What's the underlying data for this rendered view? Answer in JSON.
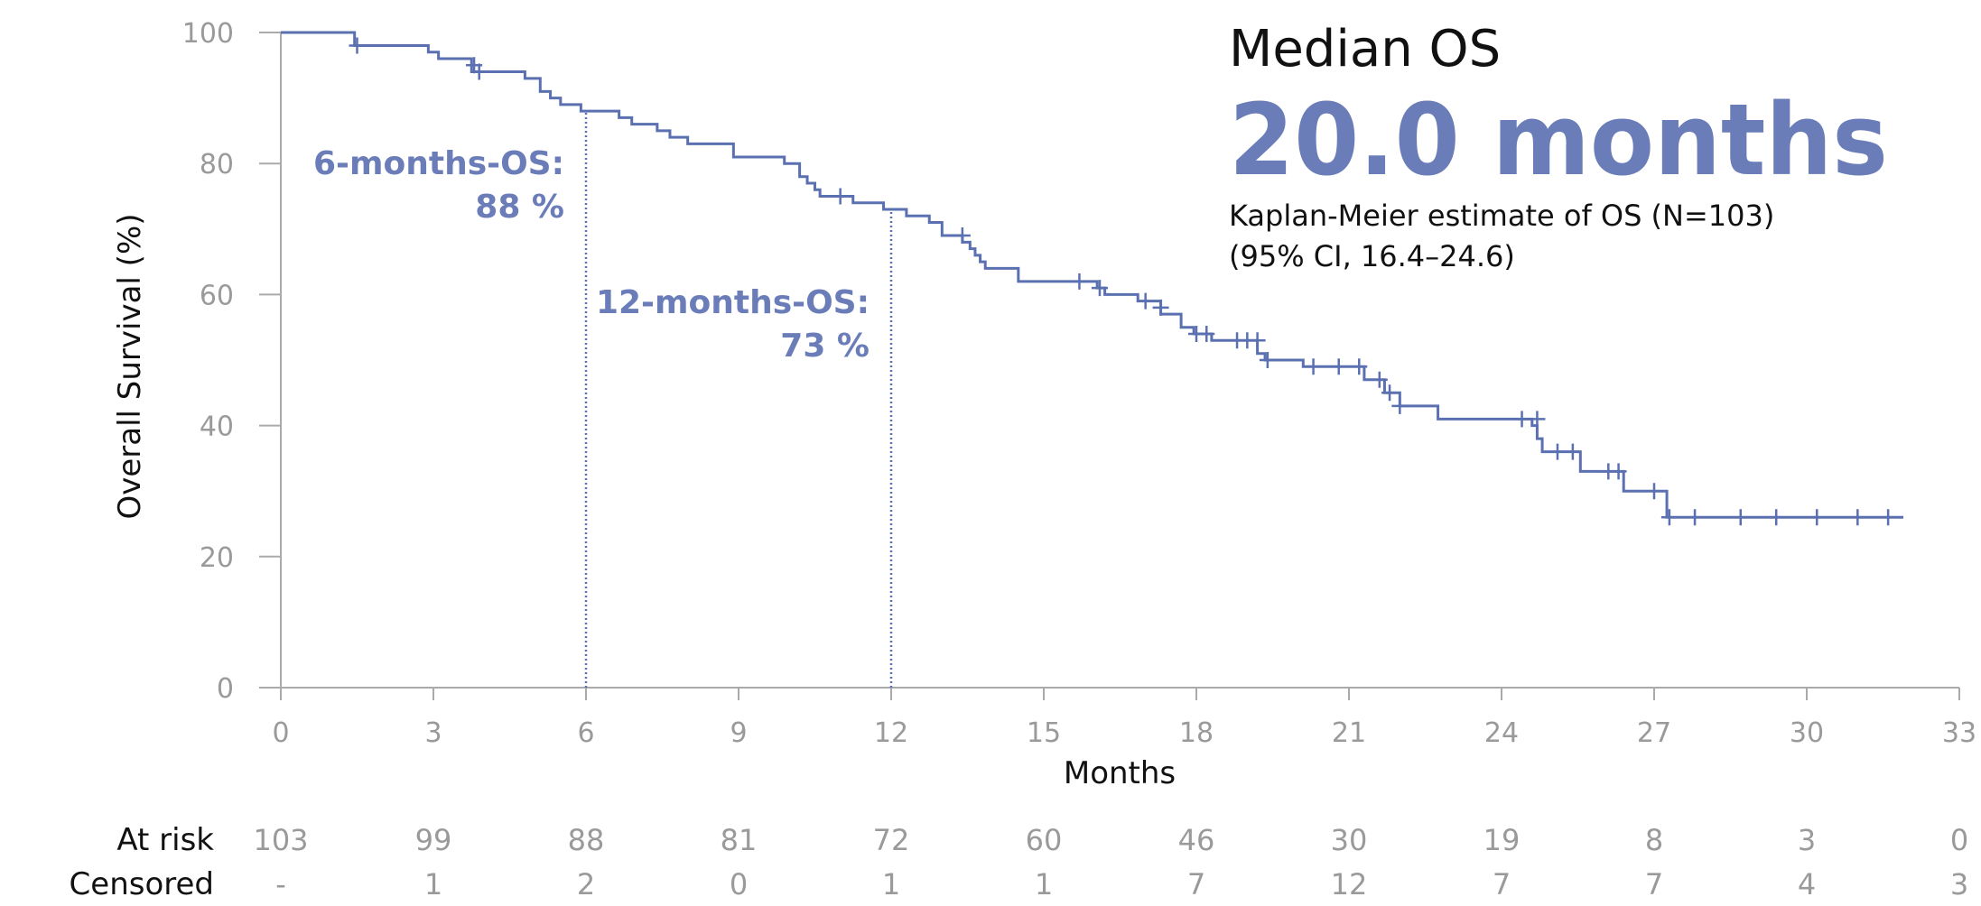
{
  "chart_data": {
    "type": "kaplan-meier",
    "ylabel": "Overall Survival (%)",
    "xlabel": "Months",
    "color": "#5a70b1",
    "xlim": [
      0,
      33
    ],
    "xticks": [
      0,
      3,
      6,
      9,
      12,
      15,
      18,
      21,
      24,
      27,
      30,
      33
    ],
    "ylim": [
      0,
      100
    ],
    "yticks": [
      0,
      20,
      40,
      60,
      80,
      100
    ],
    "x": [
      0,
      1.45,
      2.9,
      3.1,
      3.75,
      4.8,
      5.1,
      5.3,
      5.5,
      5.9,
      6.65,
      6.9,
      7.4,
      7.65,
      8.0,
      8.9,
      9.9,
      10.2,
      10.35,
      10.5,
      10.6,
      11.25,
      11.85,
      12.3,
      12.75,
      13.0,
      13.4,
      13.55,
      13.65,
      13.75,
      13.85,
      14.5,
      16.05,
      16.2,
      16.85,
      17.3,
      17.7,
      17.95,
      18.3,
      19.2,
      19.35,
      20.1,
      21.3,
      21.7,
      22.0,
      22.75,
      24.6,
      24.7,
      24.8,
      25.55,
      26.4,
      27.25,
      31.9
    ],
    "values": [
      100,
      98,
      97,
      96,
      94,
      93,
      91,
      90,
      89,
      88,
      87,
      86,
      85,
      84,
      83,
      81,
      80,
      78,
      77,
      76,
      75,
      74,
      73,
      72,
      71,
      69,
      68,
      67,
      66,
      65,
      64,
      62,
      61,
      60,
      59,
      57,
      55,
      54,
      53,
      51,
      50,
      49,
      47,
      45,
      43,
      41,
      40,
      38,
      36,
      33,
      30,
      26,
      26
    ],
    "censored_x": [
      1.5,
      3.8,
      3.9,
      11.0,
      13.4,
      15.7,
      16.1,
      17.0,
      17.3,
      18.0,
      18.2,
      18.8,
      19.0,
      19.2,
      19.4,
      20.3,
      20.8,
      21.2,
      21.6,
      21.8,
      22.0,
      24.4,
      24.7,
      25.1,
      25.4,
      26.1,
      26.3,
      27.0,
      27.3,
      27.8,
      28.7,
      29.4,
      30.2,
      31.0,
      31.6
    ],
    "censored_y": [
      98,
      95,
      94,
      75,
      69,
      62,
      61,
      59,
      58,
      54,
      54,
      53,
      53,
      53,
      50,
      49,
      49,
      49,
      47,
      45,
      43,
      41,
      41,
      36,
      36,
      33,
      33,
      30,
      26,
      26,
      26,
      26,
      26,
      26,
      26
    ],
    "reference_lines": [
      {
        "label": "6-months-OS:",
        "value_label": "88 %",
        "x": 6,
        "y": 88
      },
      {
        "label": "12-months-OS:",
        "value_label": "73 %",
        "x": 12,
        "y": 73
      }
    ],
    "median_box": {
      "title": "Median OS",
      "value": "20.0 months",
      "line1": "Kaplan-Meier estimate of OS (N=103)",
      "line2": "(95% CI, 16.4–24.6)"
    },
    "risk_table": {
      "row_labels": [
        "At risk",
        "Censored"
      ],
      "at_risk": [
        103,
        99,
        88,
        81,
        72,
        60,
        46,
        30,
        19,
        8,
        3,
        0
      ],
      "censored": [
        "-",
        1,
        2,
        0,
        1,
        1,
        7,
        12,
        7,
        7,
        4,
        3
      ]
    }
  }
}
